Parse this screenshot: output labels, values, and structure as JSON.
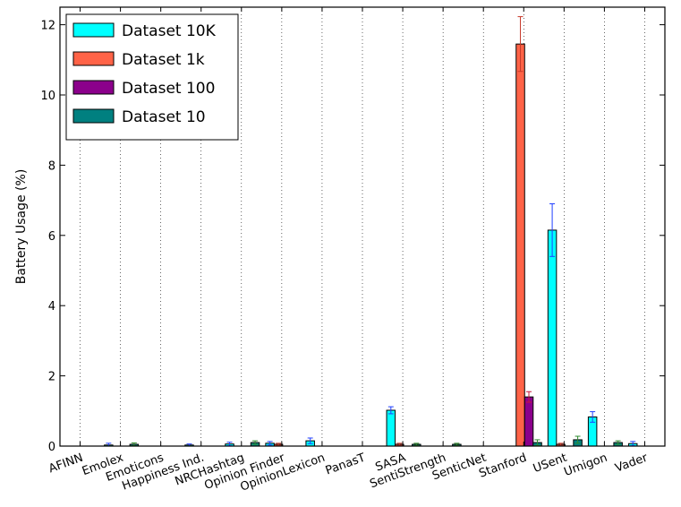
{
  "chart_data": {
    "type": "bar",
    "title": "",
    "xlabel": "",
    "ylabel": "Battery Usage (%)",
    "ylim": [
      0,
      12.5
    ],
    "yticks": [
      0,
      2,
      4,
      6,
      8,
      10,
      12
    ],
    "grid": "vertical dotted",
    "legend_position": "top-left",
    "categories": [
      "AFINN",
      "Emolex",
      "Emoticons",
      "Happiness Ind.",
      "NRCHashtag",
      "Opinion Finder",
      "OpinionLexicon",
      "PanasT",
      "SASA",
      "SentiStrength",
      "SenticNet",
      "Stanford",
      "USent",
      "Umigon",
      "Vader"
    ],
    "series": [
      {
        "name": "Dataset 10K",
        "color": "#00ffff",
        "error_color": "#1f3fff",
        "values": [
          0,
          0.03,
          0,
          0.03,
          0.06,
          0.08,
          0.15,
          0,
          1.02,
          0,
          0,
          0,
          6.15,
          0.83,
          0.07
        ],
        "errors": [
          0,
          0.05,
          0,
          0.03,
          0.05,
          0.05,
          0.08,
          0,
          0.1,
          0,
          0,
          0,
          0.75,
          0.15,
          0.06
        ]
      },
      {
        "name": "Dataset 1k",
        "color": "#ff6347",
        "error_color": "#c83a2a",
        "values": [
          0,
          0,
          0,
          0,
          0,
          0.05,
          0,
          0,
          0.05,
          0,
          0,
          11.45,
          0.05,
          0,
          0
        ],
        "errors": [
          0,
          0,
          0,
          0,
          0,
          0.03,
          0,
          0,
          0.03,
          0,
          0,
          0.78,
          0.03,
          0,
          0
        ]
      },
      {
        "name": "Dataset 100",
        "color": "#8b008b",
        "error_color": "#c8143c",
        "values": [
          0,
          0,
          0,
          0,
          0,
          0,
          0,
          0,
          0,
          0,
          0,
          1.4,
          0,
          0,
          0
        ],
        "errors": [
          0,
          0,
          0,
          0,
          0,
          0,
          0,
          0,
          0,
          0,
          0,
          0.15,
          0,
          0,
          0
        ]
      },
      {
        "name": "Dataset 10",
        "color": "#008080",
        "error_color": "#2e8b2e",
        "values": [
          0,
          0.05,
          0,
          0,
          0.1,
          0,
          0,
          0,
          0.05,
          0.05,
          0,
          0.1,
          0.18,
          0.1,
          0
        ],
        "errors": [
          0,
          0.04,
          0,
          0,
          0.05,
          0,
          0,
          0,
          0.03,
          0.03,
          0,
          0.08,
          0.1,
          0.05,
          0
        ]
      }
    ]
  }
}
